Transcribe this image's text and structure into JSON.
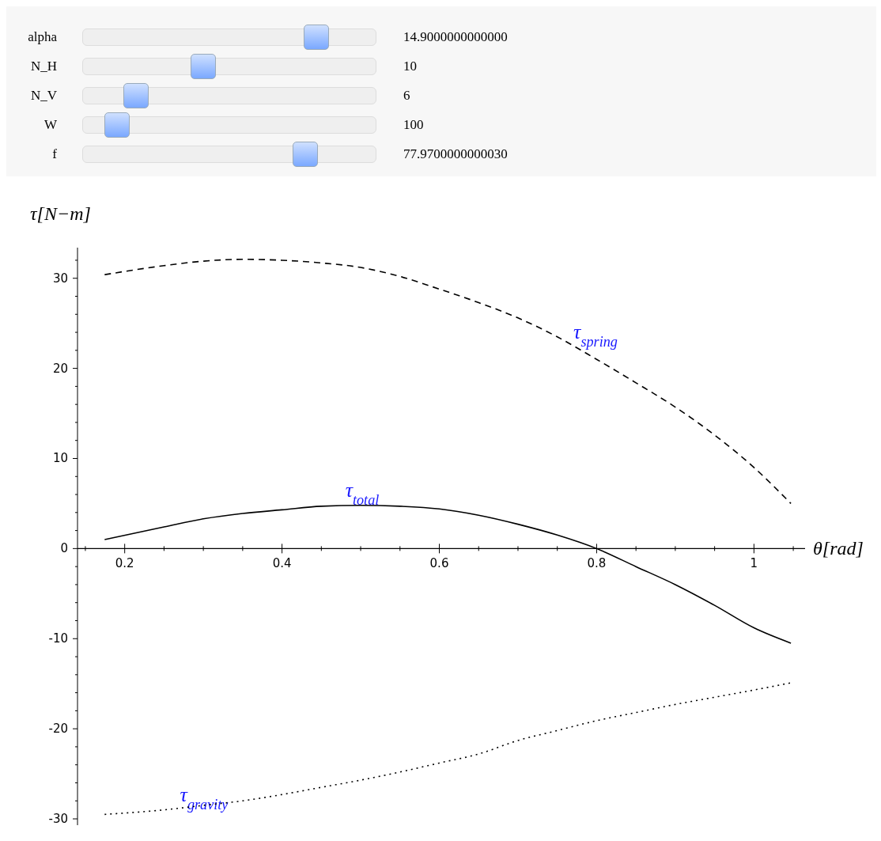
{
  "chart_data": {
    "type": "line",
    "xlabel": "θ[rad]",
    "ylabel": "τ[N−m]",
    "x": [
      0.1745,
      0.25,
      0.3,
      0.35,
      0.4,
      0.45,
      0.5,
      0.55,
      0.6,
      0.65,
      0.7,
      0.75,
      0.8,
      0.85,
      0.9,
      0.95,
      1.0,
      1.047
    ],
    "series": [
      {
        "color": "#000000",
        "line_style": "dashed",
        "values": [
          30.4,
          31.4,
          31.9,
          32.1,
          32.0,
          31.7,
          31.2,
          30.2,
          28.8,
          27.3,
          25.6,
          23.5,
          21.0,
          18.4,
          15.7,
          12.6,
          9.0,
          5.0
        ]
      },
      {
        "color": "#000000",
        "line_style": "solid",
        "values": [
          1.0,
          2.4,
          3.3,
          3.9,
          4.3,
          4.7,
          4.8,
          4.7,
          4.4,
          3.7,
          2.7,
          1.5,
          0.0,
          -2.0,
          -4.0,
          -6.3,
          -8.8,
          -10.5
        ]
      },
      {
        "color": "#000000",
        "line_style": "dotted",
        "values": [
          -29.5,
          -29.0,
          -28.5,
          -28.0,
          -27.3,
          -26.5,
          -25.7,
          -24.8,
          -23.8,
          -22.8,
          -21.3,
          -20.2,
          -19.1,
          -18.2,
          -17.3,
          -16.5,
          -15.7,
          -14.9
        ]
      }
    ],
    "xlim": [
      0.14,
      1.065
    ],
    "xticks": [
      {
        "value": 0.15,
        "label": null
      },
      0.2,
      {
        "value": 0.25,
        "label": null
      },
      {
        "value": 0.3,
        "label": null
      },
      {
        "value": 0.35,
        "label": null
      },
      0.4,
      {
        "value": 0.45,
        "label": null
      },
      {
        "value": 0.5,
        "label": null
      },
      {
        "value": 0.55,
        "label": null
      },
      0.6,
      {
        "value": 0.65,
        "label": null
      },
      {
        "value": 0.7,
        "label": null
      },
      {
        "value": 0.75,
        "label": null
      },
      0.8,
      {
        "value": 0.85,
        "label": null
      },
      {
        "value": 0.9,
        "label": null
      },
      {
        "value": 0.95,
        "label": null
      },
      1,
      {
        "value": 1.05,
        "label": null
      }
    ],
    "ylim": [
      -30.7,
      33.4
    ],
    "yticks": [
      -30,
      {
        "value": -28,
        "label": null
      },
      {
        "value": -26,
        "label": null
      },
      {
        "value": -24,
        "label": null
      },
      {
        "value": -22,
        "label": null
      },
      -20,
      {
        "value": -18,
        "label": null
      },
      {
        "value": -16,
        "label": null
      },
      {
        "value": -14,
        "label": null
      },
      {
        "value": -12,
        "label": null
      },
      -10,
      {
        "value": -8,
        "label": null
      },
      {
        "value": -6,
        "label": null
      },
      {
        "value": -4,
        "label": null
      },
      {
        "value": -2,
        "label": null
      },
      0,
      {
        "value": 2,
        "label": null
      },
      {
        "value": 4,
        "label": null
      },
      {
        "value": 6,
        "label": null
      },
      {
        "value": 8,
        "label": null
      },
      10,
      {
        "value": 12,
        "label": null
      },
      {
        "value": 14,
        "label": null
      },
      {
        "value": 16,
        "label": null
      },
      {
        "value": 18,
        "label": null
      },
      20,
      {
        "value": 22,
        "label": null
      },
      {
        "value": 24,
        "label": null
      },
      {
        "value": 26,
        "label": null
      },
      {
        "value": 28,
        "label": null
      },
      30,
      {
        "value": 32,
        "label": null
      }
    ],
    "grid": false,
    "marker": "none",
    "annotations": [
      "alpha",
      "14.9000000000000",
      "N_H",
      "10",
      "N_V",
      "6",
      "W",
      "100",
      "f",
      "77.9700000000030",
      "τ$_{spring}$",
      "τ$_{total}$",
      "τ$_{gravity}$"
    ]
  }
}
